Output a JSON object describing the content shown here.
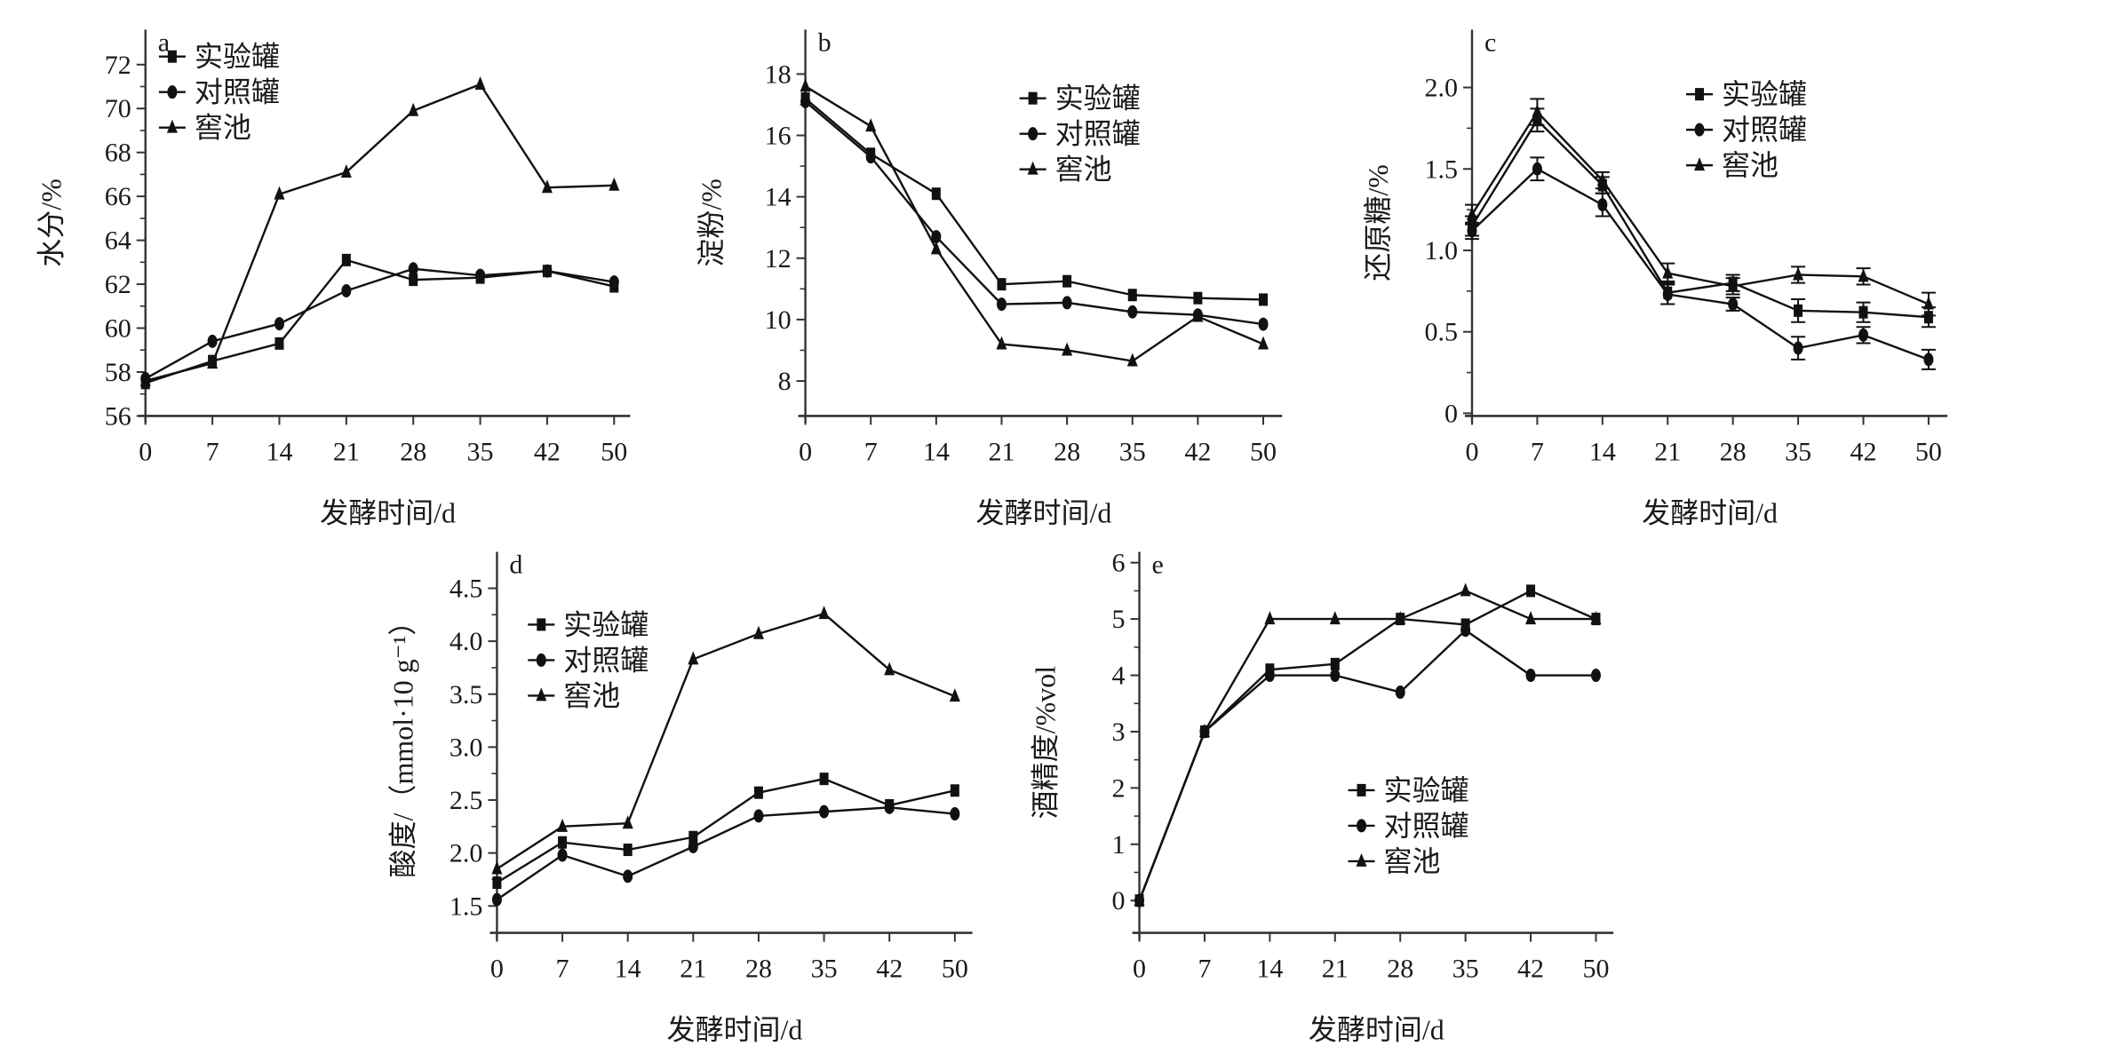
{
  "chart_data": [
    {
      "id": "a",
      "type": "line",
      "panel_label": "a",
      "title": "",
      "xlabel": "发酵时间/d",
      "ylabel": "水分/%",
      "categories": [
        "0",
        "7",
        "14",
        "21",
        "28",
        "35",
        "42",
        "50"
      ],
      "y_ticks": [
        "56",
        "58",
        "60",
        "62",
        "64",
        "66",
        "68",
        "70",
        "72"
      ],
      "ylim": [
        56,
        72
      ],
      "grid": false,
      "legend_position": "top-left",
      "series": [
        {
          "name": "实验罐",
          "marker": "square",
          "values": [
            57.5,
            58.5,
            59.3,
            63.1,
            62.2,
            62.3,
            62.6,
            61.9
          ]
        },
        {
          "name": "对照罐",
          "marker": "circle",
          "values": [
            57.7,
            59.4,
            60.2,
            61.7,
            62.7,
            62.4,
            62.6,
            62.1
          ]
        },
        {
          "name": "窖池",
          "marker": "triangle",
          "values": [
            57.6,
            58.4,
            66.1,
            67.1,
            69.9,
            71.1,
            66.4,
            66.5
          ]
        }
      ]
    },
    {
      "id": "b",
      "type": "line",
      "panel_label": "b",
      "title": "",
      "xlabel": "发酵时间/d",
      "ylabel": "淀粉/%",
      "categories": [
        "0",
        "7",
        "14",
        "21",
        "28",
        "35",
        "42",
        "50"
      ],
      "y_ticks": [
        "8",
        "10",
        "12",
        "14",
        "16",
        "18"
      ],
      "ylim": [
        7,
        18.9
      ],
      "grid": false,
      "legend_position": "top-right",
      "series": [
        {
          "name": "实验罐",
          "marker": "square",
          "values": [
            17.2,
            15.4,
            14.1,
            11.15,
            11.25,
            10.8,
            10.7,
            10.65
          ]
        },
        {
          "name": "对照罐",
          "marker": "circle",
          "values": [
            17.1,
            15.3,
            12.7,
            10.5,
            10.55,
            10.25,
            10.15,
            9.85
          ]
        },
        {
          "name": "窖池",
          "marker": "triangle",
          "values": [
            17.6,
            16.3,
            12.3,
            9.2,
            9.0,
            8.65,
            10.1,
            9.2
          ]
        }
      ]
    },
    {
      "id": "c",
      "type": "line",
      "panel_label": "c",
      "title": "",
      "xlabel": "发酵时间/d",
      "ylabel": "还原糖/%",
      "categories": [
        "0",
        "7",
        "14",
        "21",
        "28",
        "35",
        "42",
        "50"
      ],
      "y_ticks": [
        "0",
        "0.5",
        "1.0",
        "1.5",
        "2.0"
      ],
      "ylim": [
        0,
        2.25
      ],
      "grid": false,
      "legend_position": "top-right",
      "error_bars": true,
      "series": [
        {
          "name": "实验罐",
          "marker": "square",
          "values": [
            1.15,
            1.8,
            1.4,
            0.74,
            0.8,
            0.63,
            0.62,
            0.59
          ],
          "errors": [
            0.06,
            0.07,
            0.05,
            0.07,
            0.05,
            0.07,
            0.06,
            0.06
          ]
        },
        {
          "name": "对照罐",
          "marker": "circle",
          "values": [
            1.12,
            1.5,
            1.28,
            0.73,
            0.67,
            0.4,
            0.48,
            0.33
          ],
          "errors": [
            0.05,
            0.07,
            0.07,
            0.06,
            0.04,
            0.07,
            0.05,
            0.06
          ]
        },
        {
          "name": "窖池",
          "marker": "triangle",
          "values": [
            1.22,
            1.85,
            1.43,
            0.86,
            0.78,
            0.85,
            0.84,
            0.67
          ],
          "errors": [
            0.06,
            0.08,
            0.05,
            0.06,
            0.05,
            0.05,
            0.05,
            0.07
          ]
        }
      ]
    },
    {
      "id": "d",
      "type": "line",
      "panel_label": "d",
      "title": "",
      "xlabel": "发酵时间/d",
      "ylabel": "酸度/（mmol·10 g⁻¹）",
      "categories": [
        "0",
        "7",
        "14",
        "21",
        "28",
        "35",
        "42",
        "50"
      ],
      "y_ticks": [
        "1.5",
        "2.0",
        "2.5",
        "3.0",
        "3.5",
        "4.0",
        "4.5"
      ],
      "ylim": [
        1.25,
        4.75
      ],
      "grid": false,
      "legend_position": "top-left",
      "series": [
        {
          "name": "实验罐",
          "marker": "square",
          "values": [
            1.72,
            2.1,
            2.03,
            2.15,
            2.57,
            2.7,
            2.45,
            2.59
          ]
        },
        {
          "name": "对照罐",
          "marker": "circle",
          "values": [
            1.56,
            1.98,
            1.78,
            2.06,
            2.35,
            2.39,
            2.43,
            2.37
          ]
        },
        {
          "name": "窖池",
          "marker": "triangle",
          "values": [
            1.85,
            2.25,
            2.28,
            3.83,
            4.07,
            4.26,
            3.73,
            3.48
          ]
        }
      ]
    },
    {
      "id": "e",
      "type": "line",
      "panel_label": "e",
      "title": "",
      "xlabel": "发酵时间/d",
      "ylabel": "酒精度/%vol",
      "categories": [
        "0",
        "7",
        "14",
        "21",
        "28",
        "35",
        "42",
        "50"
      ],
      "y_ticks": [
        "0",
        "1",
        "2",
        "3",
        "4",
        "5",
        "6"
      ],
      "ylim": [
        -0.5,
        6
      ],
      "grid": false,
      "legend_position": "center-right",
      "series": [
        {
          "name": "实验罐",
          "marker": "square",
          "values": [
            0,
            3,
            4.1,
            4.2,
            5.0,
            4.9,
            5.5,
            5.0
          ]
        },
        {
          "name": "对照罐",
          "marker": "circle",
          "values": [
            0,
            3,
            4.0,
            4.0,
            3.7,
            4.8,
            4.0,
            4.0
          ]
        },
        {
          "name": "窖池",
          "marker": "triangle",
          "values": [
            0,
            3,
            5.0,
            5.0,
            5.0,
            5.5,
            5.0,
            5.0
          ]
        }
      ]
    }
  ]
}
